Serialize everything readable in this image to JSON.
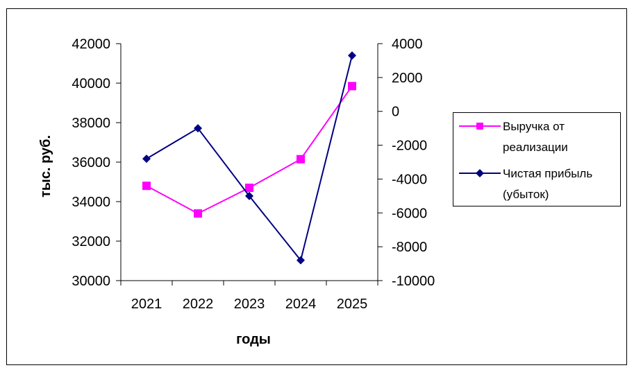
{
  "chart_data": {
    "type": "line",
    "title": "",
    "xlabel": "годы",
    "ylabel": "тыс. руб.",
    "categories": [
      "2021",
      "2022",
      "2023",
      "2024",
      "2025"
    ],
    "y_left": {
      "ylim": [
        30000,
        42000
      ],
      "ticks": [
        "30000",
        "32000",
        "34000",
        "36000",
        "38000",
        "40000",
        "42000"
      ]
    },
    "y_right": {
      "ylim": [
        -10000,
        4000
      ],
      "ticks": [
        "-10000",
        "-8000",
        "-6000",
        "-4000",
        "-2000",
        "0",
        "2000",
        "4000"
      ]
    },
    "series": [
      {
        "name": "Выручка от реализации",
        "axis": "left",
        "marker": "square",
        "color": "#ff00ff",
        "values": [
          34800,
          33400,
          34700,
          36150,
          39850
        ]
      },
      {
        "name": "Чистая прибыль (убыток)",
        "axis": "right",
        "marker": "diamond",
        "color": "#000080",
        "values": [
          -2800,
          -1000,
          -5000,
          -8800,
          3300
        ]
      }
    ],
    "legend": {
      "position": "right",
      "entries": [
        {
          "lines": [
            "Выручка от",
            "реализации"
          ]
        },
        {
          "lines": [
            "Чистая прибыль",
            "(убыток)"
          ]
        }
      ]
    },
    "grid": false
  }
}
